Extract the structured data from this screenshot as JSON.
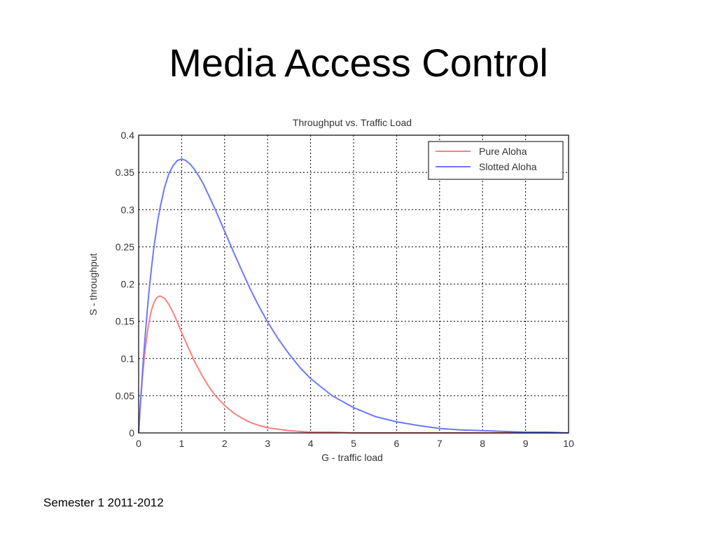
{
  "slide": {
    "title": "Media Access Control",
    "footer": "Semester 1 2011-2012"
  },
  "chart_data": {
    "type": "line",
    "title": "Throughput vs. Traffic Load",
    "xlabel": "G - traffic load",
    "ylabel": "S - throughput",
    "xlim": [
      0,
      10
    ],
    "ylim": [
      0,
      0.4
    ],
    "xticks": [
      0,
      1,
      2,
      3,
      4,
      5,
      6,
      7,
      8,
      9,
      10
    ],
    "yticks": [
      0,
      0.05,
      0.1,
      0.15,
      0.2,
      0.25,
      0.3,
      0.35,
      0.4
    ],
    "ytick_labels": [
      "0",
      "0.05",
      "0.1",
      "0.15",
      "0.2",
      "0.25",
      "0.3",
      "0.35",
      "0.4"
    ],
    "grid": true,
    "legend_position": "top-right",
    "x": [
      0,
      0.05,
      0.1,
      0.15,
      0.2,
      0.25,
      0.3,
      0.35,
      0.4,
      0.45,
      0.5,
      0.6,
      0.7,
      0.8,
      0.9,
      1,
      1.1,
      1.2,
      1.3,
      1.4,
      1.5,
      1.6,
      1.8,
      2,
      2.2,
      2.4,
      2.6,
      2.8,
      3,
      3.25,
      3.5,
      3.75,
      4,
      4.5,
      5,
      5.5,
      6,
      6.5,
      7,
      7.5,
      8,
      8.5,
      9,
      9.5,
      10
    ],
    "series": [
      {
        "name": "Pure Aloha",
        "color": "#ff7f7f",
        "values": [
          0,
          0.045,
          0.082,
          0.111,
          0.134,
          0.152,
          0.165,
          0.174,
          0.18,
          0.183,
          0.184,
          0.181,
          0.173,
          0.162,
          0.149,
          0.135,
          0.122,
          0.109,
          0.096,
          0.085,
          0.075,
          0.065,
          0.049,
          0.037,
          0.027,
          0.02,
          0.014,
          0.01,
          0.007,
          0.005,
          0.003,
          0.002,
          0.001,
          0.001,
          0,
          0,
          0,
          0,
          0,
          0,
          0,
          0,
          0,
          0,
          0
        ]
      },
      {
        "name": "Slotted Aloha",
        "color": "#6b78ff",
        "values": [
          0,
          0.048,
          0.09,
          0.129,
          0.164,
          0.195,
          0.222,
          0.247,
          0.268,
          0.287,
          0.303,
          0.329,
          0.348,
          0.359,
          0.366,
          0.368,
          0.366,
          0.361,
          0.354,
          0.345,
          0.335,
          0.323,
          0.298,
          0.271,
          0.244,
          0.218,
          0.193,
          0.17,
          0.149,
          0.126,
          0.106,
          0.088,
          0.073,
          0.05,
          0.034,
          0.022,
          0.015,
          0.01,
          0.006,
          0.004,
          0.003,
          0.002,
          0.001,
          0.001,
          0
        ]
      }
    ]
  }
}
